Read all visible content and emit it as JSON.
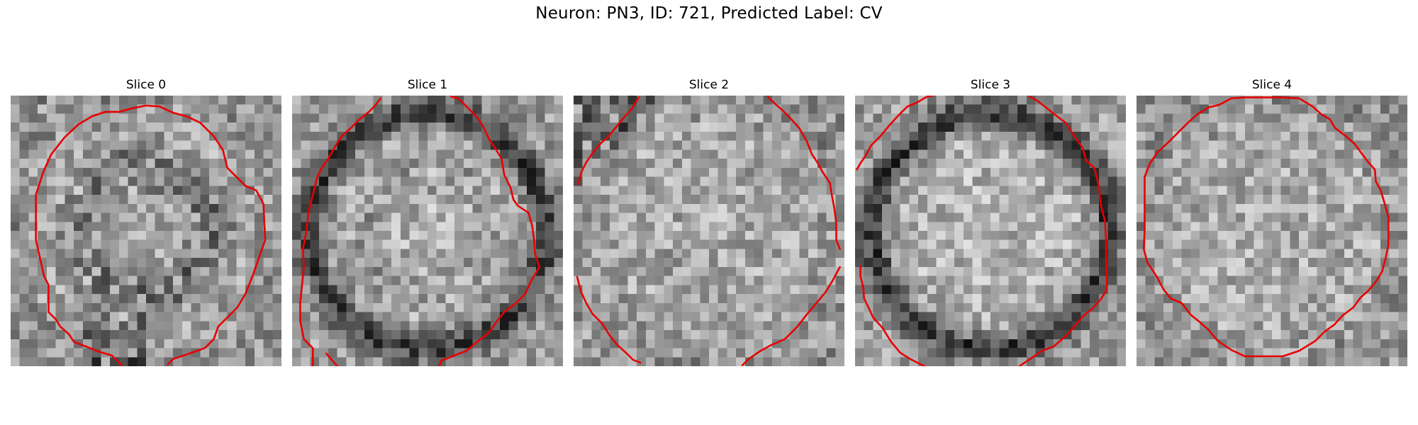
{
  "figure": {
    "title": "Neuron: PN3, ID: 721, Predicted Label: CV",
    "contour_color": "#e80000",
    "colormap": "gray",
    "panels": [
      {
        "title": "Slice 0",
        "dark_ring": false,
        "center_dark": 0.35
      },
      {
        "title": "Slice 1",
        "dark_ring": true,
        "center_dark": 0.15
      },
      {
        "title": "Slice 2",
        "dark_ring": false,
        "center_dark": 0.05
      },
      {
        "title": "Slice 3",
        "dark_ring": true,
        "center_dark": 0.0
      },
      {
        "title": "Slice 4",
        "dark_ring": false,
        "center_dark": 0.0
      }
    ]
  }
}
